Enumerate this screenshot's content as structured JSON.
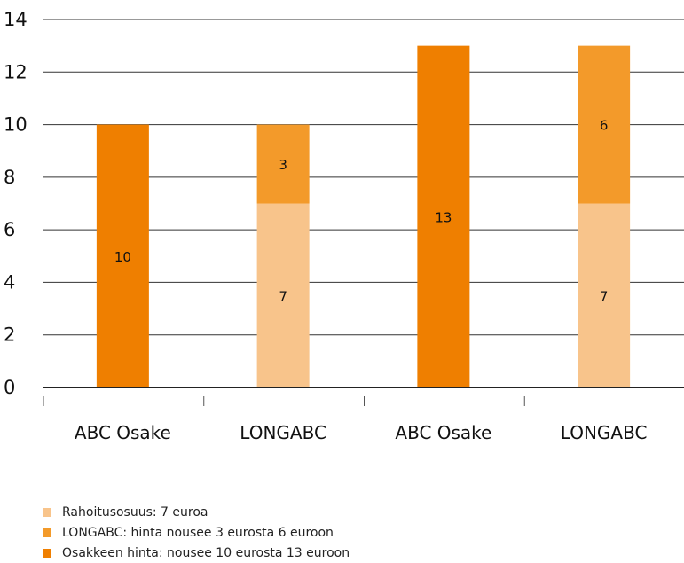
{
  "chart_data": {
    "type": "bar",
    "stacked": true,
    "categories": [
      "ABC Osake",
      "LONGABC",
      "ABC Osake",
      "LONGABC"
    ],
    "series": [
      {
        "name": "Rahoitusosuus: 7 euroa",
        "values": [
          0,
          7,
          0,
          7
        ],
        "color": "#f8c48b"
      },
      {
        "name": "LONGABC: hinta nousee 3 eurosta 6 euroon",
        "values": [
          0,
          3,
          0,
          6
        ],
        "color": "#f39a2a"
      },
      {
        "name": "Osakkeen hinta: nousee 10 eurosta 13 euroon",
        "values": [
          10,
          0,
          13,
          0
        ],
        "color": "#ef7f00"
      }
    ],
    "data_labels": [
      [
        null,
        "7",
        null,
        "7"
      ],
      [
        null,
        "3",
        null,
        "6"
      ],
      [
        "10",
        null,
        "13",
        null
      ]
    ],
    "y_ticks": [
      "0",
      "2",
      "4",
      "6",
      "8",
      "10",
      "12",
      "14"
    ],
    "ylim": [
      0,
      14
    ],
    "grid": true,
    "legend_position": "bottom-left",
    "title": "",
    "xlabel": "",
    "ylabel": ""
  }
}
